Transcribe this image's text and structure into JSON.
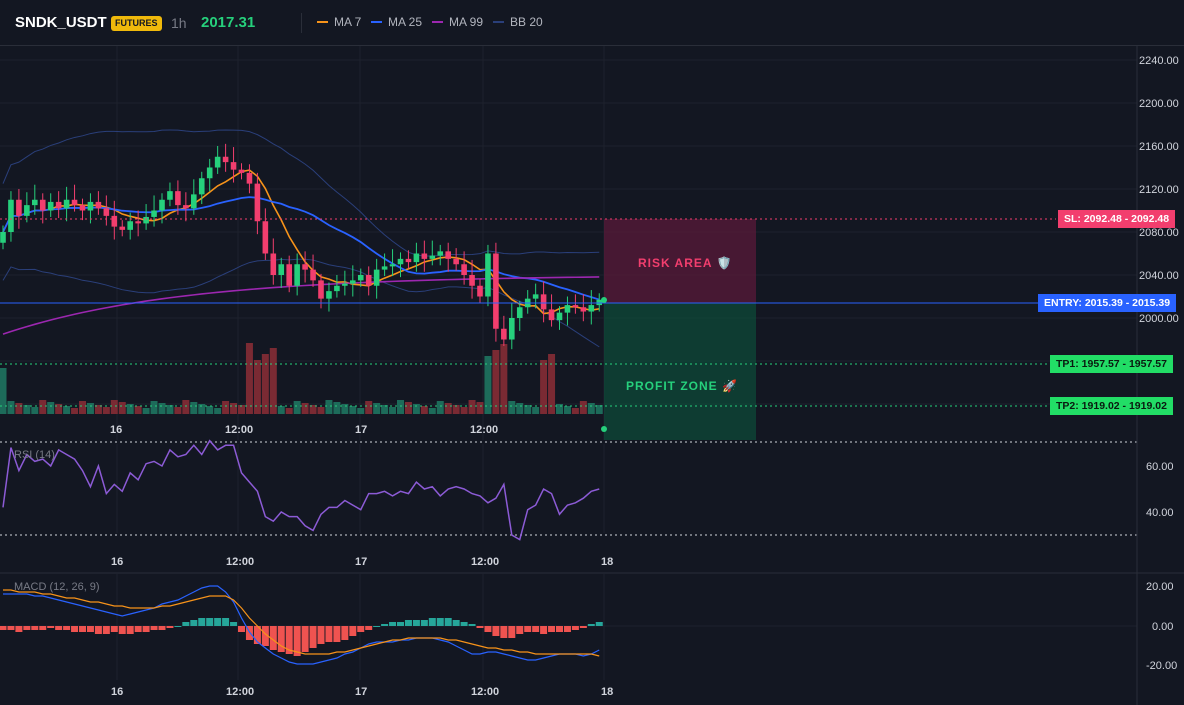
{
  "header": {
    "symbol": "SNDK_USDT",
    "badge": "FUTURES",
    "interval": "1h",
    "price": "2017.31",
    "indicators": [
      {
        "label": "MA 7",
        "color": "#f7931a"
      },
      {
        "label": "MA 25",
        "color": "#2962ff"
      },
      {
        "label": "MA 99",
        "color": "#9c27b0"
      },
      {
        "label": "BB 20",
        "color": "#2a3f7a"
      }
    ]
  },
  "price_axis": [
    "2240.00",
    "2200.00",
    "2160.00",
    "2120.00",
    "2080.00",
    "2040.00",
    "2000.00"
  ],
  "time_axis": [
    "16",
    "12:00",
    "17",
    "12:00",
    "18"
  ],
  "trade": {
    "sl_label": "SL: 2092.48 - 2092.48",
    "entry_label": "ENTRY: 2015.39 - 2015.39",
    "tp1_label": "TP1: 1957.57 - 1957.57",
    "tp2_label": "TP2: 1919.02 - 1919.02",
    "risk_text": "RISK AREA 🛡️",
    "profit_text": "PROFIT ZONE 🚀",
    "sl": 2092.48,
    "entry": 2015.39,
    "tp1": 1957.57,
    "tp2": 1919.02
  },
  "rsi": {
    "title": "RSI (14)",
    "axis": [
      "60.00",
      "40.00"
    ],
    "upper": 70,
    "lower": 30,
    "values": [
      42,
      68,
      58,
      65,
      62,
      63,
      60,
      67,
      65,
      63,
      58,
      51,
      60,
      48,
      52,
      49,
      57,
      54,
      61,
      62,
      60,
      67,
      64,
      65,
      69,
      65,
      71,
      67,
      69,
      69,
      57,
      53,
      49,
      38,
      36,
      40,
      38,
      38,
      34,
      32,
      39,
      42,
      42,
      45,
      43,
      41,
      48,
      48,
      49,
      47,
      49,
      48,
      53,
      50,
      51,
      47,
      50,
      51,
      50,
      48,
      47,
      44,
      46,
      52,
      30,
      28,
      41,
      43,
      50,
      48,
      39,
      43,
      44,
      46,
      49,
      50
    ]
  },
  "macd": {
    "title": "MACD (12, 26, 9)",
    "axis": [
      "20.00",
      "0.00",
      "-20.00"
    ],
    "hist": [
      -2,
      -2,
      -3,
      -2,
      -2,
      -2,
      -1,
      -2,
      -2,
      -3,
      -3,
      -3,
      -4,
      -4,
      -3,
      -4,
      -4,
      -3,
      -3,
      -2,
      -2,
      -1,
      0,
      2,
      3,
      4,
      4,
      4,
      4,
      2,
      -3,
      -7,
      -9,
      -10,
      -12,
      -13,
      -14,
      -15,
      -13,
      -11,
      -9,
      -8,
      -8,
      -7,
      -5,
      -3,
      -2,
      0,
      1,
      2,
      2,
      3,
      3,
      3,
      4,
      4,
      4,
      3,
      2,
      1,
      -1,
      -3,
      -5,
      -6,
      -6,
      -4,
      -3,
      -3,
      -4,
      -3,
      -3,
      -3,
      -2,
      -1,
      1,
      2
    ],
    "macd_line": [
      16,
      16,
      16,
      16,
      15,
      15,
      14,
      13,
      12,
      11,
      10,
      9,
      8,
      7,
      6,
      5,
      6,
      7,
      8,
      9,
      11,
      12,
      13,
      15,
      17,
      19,
      20,
      20,
      17,
      12,
      4,
      -3,
      -8,
      -11,
      -14,
      -16,
      -18,
      -19,
      -19,
      -19,
      -18,
      -17,
      -16,
      -14,
      -13,
      -11,
      -9,
      -8,
      -8,
      -8,
      -7,
      -7,
      -6,
      -6,
      -6,
      -7,
      -8,
      -10,
      -12,
      -14,
      -14,
      -13,
      -13,
      -14,
      -15,
      -16,
      -17,
      -17,
      -16,
      -15,
      -14,
      -14,
      -14,
      -15,
      -14,
      -12
    ],
    "signal_line": [
      18,
      18,
      17,
      17,
      17,
      16,
      16,
      15,
      14,
      14,
      13,
      12,
      12,
      11,
      10,
      10,
      9,
      9,
      9,
      9,
      10,
      10,
      11,
      12,
      13,
      14,
      15,
      15,
      15,
      13,
      9,
      4,
      0,
      -4,
      -7,
      -10,
      -12,
      -13,
      -14,
      -14,
      -14,
      -14,
      -13,
      -13,
      -12,
      -11,
      -10,
      -9,
      -8,
      -7,
      -7,
      -6,
      -6,
      -6,
      -6,
      -6,
      -7,
      -7,
      -8,
      -9,
      -10,
      -11,
      -11,
      -12,
      -12,
      -13,
      -13,
      -14,
      -14,
      -14,
      -14,
      -14,
      -14,
      -14,
      -14,
      -15
    ]
  }
}
